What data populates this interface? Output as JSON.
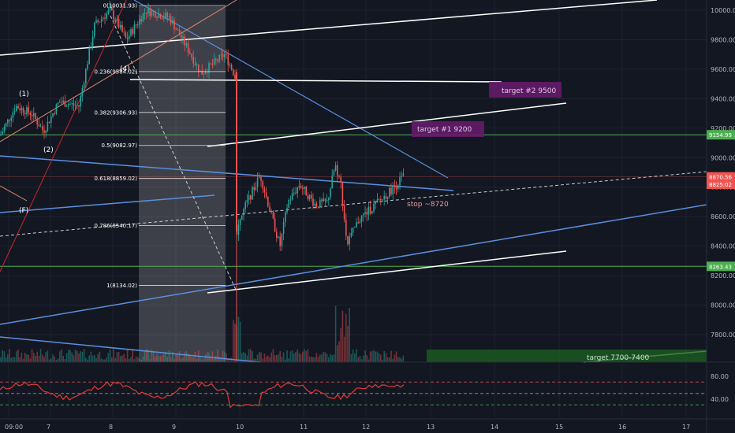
{
  "chart_data": {
    "type": "candlestick",
    "price_axis": {
      "ticks": [
        10000,
        9800,
        9600,
        9400,
        9200,
        9000,
        8800,
        8600,
        8400,
        8200,
        8000,
        7800
      ],
      "tick_labels": [
        "10000.00",
        "9800.00",
        "9600.00",
        "9400.00",
        "9200.00",
        "9000.00",
        "8800.00",
        "8600.00",
        "8400.00",
        "8200.00",
        "8000.00",
        "7800.00"
      ],
      "range": [
        7700,
        10050
      ]
    },
    "time_axis": {
      "ticks": [
        "09:00",
        "7",
        "8",
        "9",
        "10",
        "11",
        "12",
        "13",
        "14",
        "15",
        "16",
        "17"
      ]
    },
    "price_badges": [
      {
        "label": "9154.99",
        "value": 9155,
        "color": "#4caf50"
      },
      {
        "label": "8870.56",
        "value": 8870,
        "color": "#ef5350"
      },
      {
        "label": "8825:02",
        "value": 8820,
        "color": "#ef5350"
      },
      {
        "label": "8263.43",
        "value": 8263,
        "color": "#4caf50"
      }
    ],
    "fib_levels": [
      {
        "ratio": "0",
        "label": "0(10031.93)",
        "value": 10031.93
      },
      {
        "ratio": "0.236",
        "label": "0.236(9584.02)",
        "value": 9584.02
      },
      {
        "ratio": "0.382",
        "label": "0.382(9306.93)",
        "value": 9306.93
      },
      {
        "ratio": "0.5",
        "label": "0.5(9082.97)",
        "value": 9082.97
      },
      {
        "ratio": "0.618",
        "label": "0.618(8859.02)",
        "value": 8859.02
      },
      {
        "ratio": "0.786",
        "label": "0.786(8540.17)",
        "value": 8540.17
      },
      {
        "ratio": "1",
        "label": "1(8134.02)",
        "value": 8134.02
      }
    ],
    "annotations": {
      "target2": "target #2 9500",
      "target1": "target #1 9200",
      "stop": "stop ~8720",
      "target3": "target 7700-7400",
      "wave_1": "(1)",
      "wave_2": "(2)",
      "wave_4": "(4)",
      "wave_F": "(F)"
    },
    "oscillator": {
      "ticks": [
        80,
        40
      ],
      "tick_labels": [
        "80.00",
        "40.00"
      ],
      "levels": [
        70,
        50,
        30
      ]
    },
    "colors": {
      "background": "#131722",
      "up": "#26a69a",
      "down": "#ef5350",
      "trendline_blue": "#5b8fde",
      "trendline_white": "#ffffff",
      "support_green": "#4caf50",
      "target_box": "#6a1b6e",
      "target3_box": "#1b5e20",
      "rsi": "#e53935"
    }
  }
}
